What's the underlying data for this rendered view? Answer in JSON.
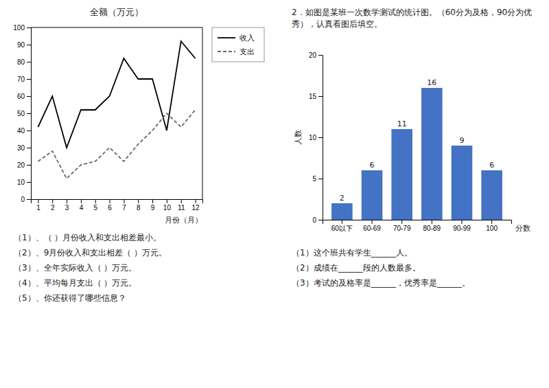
{
  "chart_data": [
    {
      "type": "line",
      "title": "全额（万元）",
      "x_label": "月份（月）",
      "x": [
        1,
        2,
        3,
        4,
        5,
        6,
        7,
        8,
        9,
        10,
        11,
        12
      ],
      "xlim": [
        0.5,
        12.5
      ],
      "xticks": [
        1,
        2,
        3,
        4,
        5,
        6,
        7,
        8,
        9,
        10,
        11,
        12
      ],
      "ylim": [
        0,
        100
      ],
      "yticks": [
        0,
        10,
        20,
        30,
        40,
        50,
        60,
        70,
        80,
        90,
        100
      ],
      "grid": false,
      "legend": "right",
      "series": [
        {
          "name": "收入",
          "color": "#000000",
          "line_style": "solid",
          "values": [
            42,
            60,
            30,
            52,
            52,
            60,
            82,
            70,
            70,
            40,
            92,
            82
          ]
        },
        {
          "name": "支出",
          "color": "#666666",
          "line_style": "dashed",
          "values": [
            22,
            28,
            12,
            20,
            22,
            30,
            22,
            32,
            40,
            50,
            42,
            52
          ]
        }
      ],
      "annotations": [
        "（1）、（  ）月份收入和支出相差最小。",
        "（2）、9月份收入和支出相差（  ）万元。",
        "（3）、全年实际收入（  ）万元。",
        "（4）、平均每月支出（  ）万元。",
        "（5）、你还获得了哪些信息？"
      ]
    },
    {
      "type": "bar",
      "title": "2．如图是某班一次数学测试的统计图。（60分为及格，90分为优秀），认真看图后填空。",
      "x_label": "分数",
      "y_label": "人数",
      "categories": [
        "60以下",
        "60-69",
        "70-79",
        "80-89",
        "90-99",
        "100"
      ],
      "values": [
        2,
        6,
        11,
        16,
        9,
        6
      ],
      "color": "#4472c4",
      "ylim": [
        0,
        20
      ],
      "yticks": [
        0,
        5,
        10,
        15,
        20
      ],
      "grid": false,
      "data_labels": true,
      "annotations": [
        "（1）这个班共有学生______人。",
        "（2）成绩在______段的人数最多。",
        "（3）考试的及格率是______，优秀率是______。"
      ]
    }
  ]
}
